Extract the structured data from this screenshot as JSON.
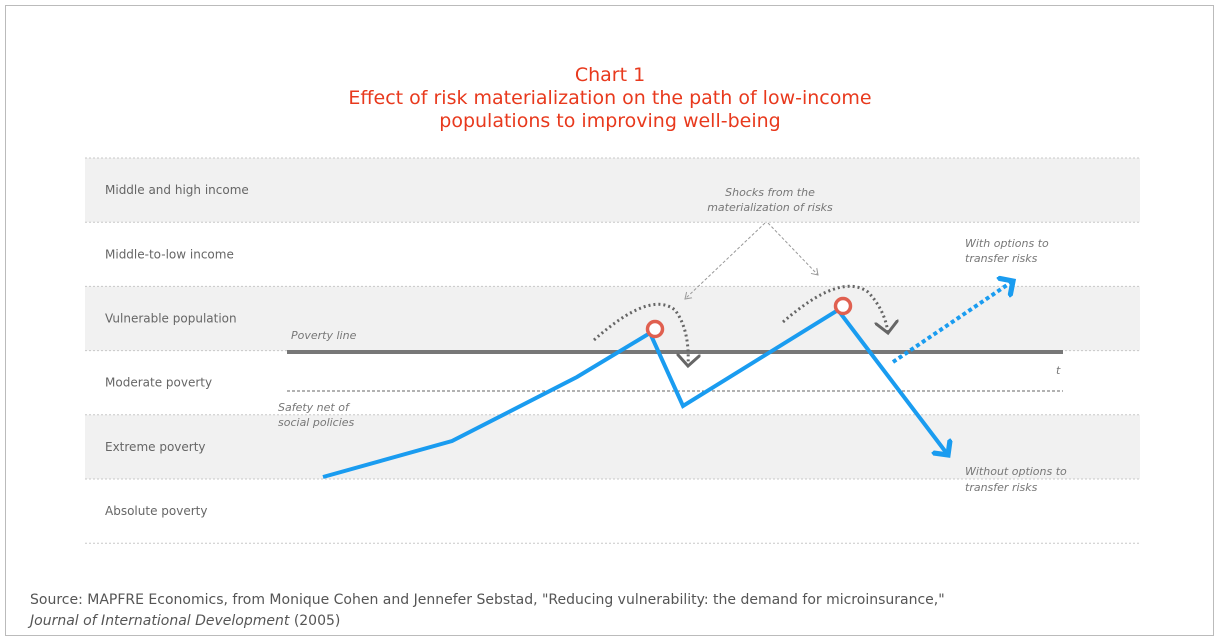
{
  "header": {
    "title": [
      "Chart 1",
      "Effect of risk materialization on the path of low-income",
      "populations to improving well-being"
    ]
  },
  "bands": [
    "Middle and high income",
    "Middle-to-low income",
    "Vulnerable population",
    "Moderate poverty",
    "Extreme poverty",
    "Absolute poverty"
  ],
  "annotations": {
    "poverty_line": "Poverty line",
    "time": "t",
    "safety_net": [
      "Safety net of",
      "social policies"
    ],
    "shocks": [
      "Shocks from the",
      "materialization of risks"
    ],
    "with_options": [
      "With options to",
      "transfer risks"
    ],
    "without_options": [
      "Without options to",
      "transfer risks"
    ]
  },
  "source": {
    "text": "Source: MAPFRE Economics, from Monique Cohen and Jennefer Sebstad, \"Reducing vulnerability: the demand for microinsurance,\"",
    "journal": "Journal of International Development",
    "year": "(2005)"
  }
}
